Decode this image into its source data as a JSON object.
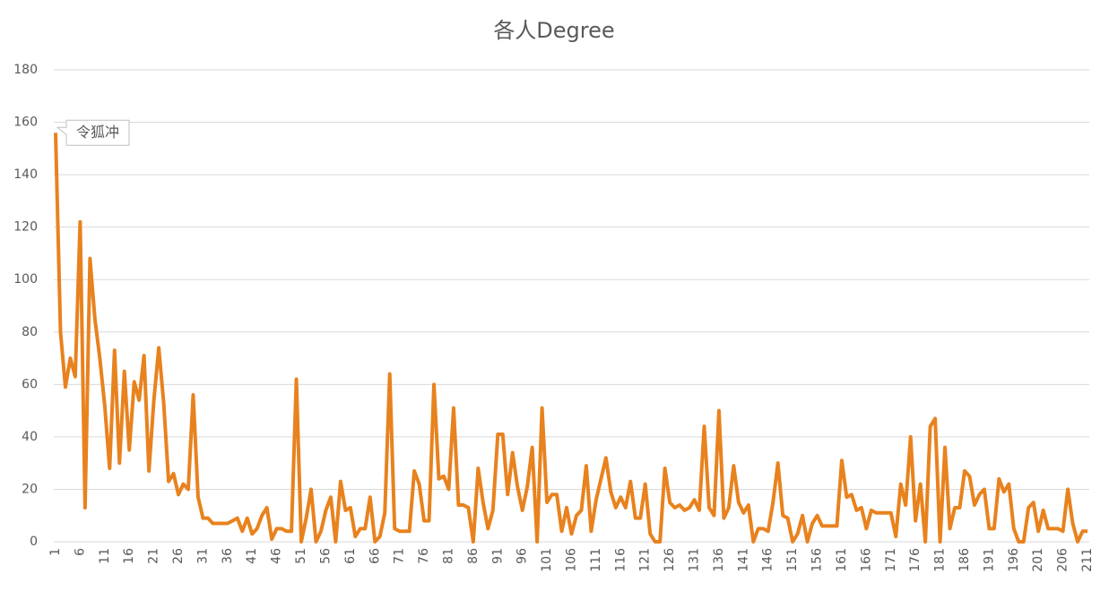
{
  "chart_data": {
    "type": "line",
    "title": "各人Degree",
    "annotation": "令狐冲",
    "color": "#e8821e",
    "grid": true,
    "ylim": [
      0,
      180
    ],
    "yticks": [
      0,
      20,
      40,
      60,
      80,
      100,
      120,
      140,
      160,
      180
    ],
    "categories": [
      1,
      null,
      null,
      null,
      null,
      6,
      null,
      null,
      null,
      null,
      11,
      null,
      null,
      null,
      null,
      16,
      null,
      null,
      null,
      null,
      21,
      null,
      null,
      null,
      null,
      26,
      null,
      null,
      null,
      null,
      31,
      null,
      null,
      null,
      null,
      36,
      null,
      null,
      null,
      null,
      41,
      null,
      null,
      null,
      null,
      46,
      null,
      null,
      null,
      null,
      51,
      null,
      null,
      null,
      null,
      56,
      null,
      null,
      null,
      null,
      61,
      null,
      null,
      null,
      null,
      66,
      null,
      null,
      null,
      null,
      71,
      null,
      null,
      null,
      null,
      76,
      null,
      null,
      null,
      null,
      81,
      null,
      null,
      null,
      null,
      86,
      null,
      null,
      null,
      null,
      91,
      null,
      null,
      null,
      null,
      96,
      null,
      null,
      null,
      null,
      101,
      null,
      null,
      null,
      null,
      106,
      null,
      null,
      null,
      null,
      111,
      null,
      null,
      null,
      null,
      116,
      null,
      null,
      null,
      null,
      121,
      null,
      null,
      null,
      null,
      126,
      null,
      null,
      null,
      null,
      131,
      null,
      null,
      null,
      null,
      136,
      null,
      null,
      null,
      null,
      141,
      null,
      null,
      null,
      null,
      146,
      null,
      null,
      null,
      null,
      151,
      null,
      null,
      null,
      null,
      156,
      null,
      null,
      null,
      null,
      161,
      null,
      null,
      null,
      null,
      166,
      null,
      null,
      null,
      null,
      171,
      null,
      null,
      null,
      null,
      176,
      null,
      null,
      null,
      null,
      181,
      null,
      null,
      null,
      null,
      186,
      null,
      null,
      null,
      null,
      191,
      null,
      null,
      null,
      null,
      196,
      null,
      null,
      null,
      null,
      201,
      null,
      null,
      null,
      null,
      206,
      null,
      null,
      null,
      null,
      211
    ],
    "values": [
      156,
      80,
      59,
      70,
      63,
      122,
      13,
      108,
      85,
      70,
      52,
      28,
      73,
      30,
      65,
      35,
      61,
      54,
      71,
      27,
      54,
      74,
      53,
      23,
      26,
      18,
      22,
      20,
      56,
      17,
      9,
      9,
      7,
      7,
      7,
      7,
      8,
      9,
      4,
      9,
      3,
      5,
      10,
      13,
      1,
      5,
      5,
      4,
      4,
      62,
      0,
      9,
      20,
      0,
      4,
      12,
      17,
      0,
      23,
      12,
      13,
      2,
      5,
      5,
      17,
      0,
      2,
      11,
      64,
      5,
      4,
      4,
      4,
      27,
      22,
      8,
      8,
      60,
      24,
      25,
      20,
      51,
      14,
      14,
      13,
      0,
      28,
      15,
      5,
      12,
      41,
      41,
      18,
      34,
      21,
      12,
      21,
      36,
      0,
      51,
      15,
      18,
      18,
      4,
      13,
      3,
      10,
      12,
      29,
      4,
      16,
      24,
      32,
      19,
      13,
      17,
      13,
      23,
      9,
      9,
      22,
      3,
      0,
      0,
      28,
      15,
      13,
      14,
      12,
      13,
      16,
      12,
      44,
      13,
      10,
      50,
      9,
      13,
      29,
      15,
      11,
      14,
      0,
      5,
      5,
      4,
      15,
      30,
      10,
      9,
      0,
      3,
      10,
      0,
      7,
      10,
      6,
      6,
      6,
      6,
      31,
      17,
      18,
      12,
      13,
      5,
      12,
      11,
      11,
      11,
      11,
      2,
      22,
      14,
      40,
      8,
      22,
      0,
      44,
      47,
      0,
      36,
      5,
      13,
      13,
      27,
      25,
      14,
      18,
      20,
      5,
      5,
      24,
      19,
      22,
      5,
      0,
      0,
      13,
      15,
      4,
      12,
      5,
      5,
      5,
      4,
      20,
      7,
      0,
      4,
      4
    ]
  }
}
